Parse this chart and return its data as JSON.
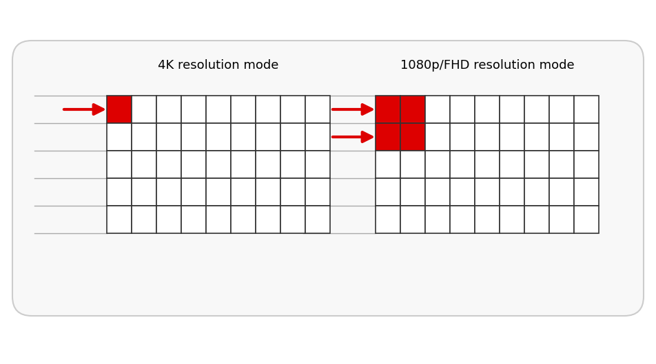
{
  "title_left": "4K resolution mode",
  "title_right": "1080p/FHD resolution mode",
  "grid_cols": 9,
  "grid_rows": 5,
  "arrow_color": "#dd0000",
  "red_color": "#dd0000",
  "grid_color": "#333333",
  "bg_color": "#ffffff",
  "outer_bg": "#ffffff",
  "line_color": "#aaaaaa",
  "rounded_rect_color": "#cccccc",
  "rounded_rect_bg": "#f8f8f8"
}
